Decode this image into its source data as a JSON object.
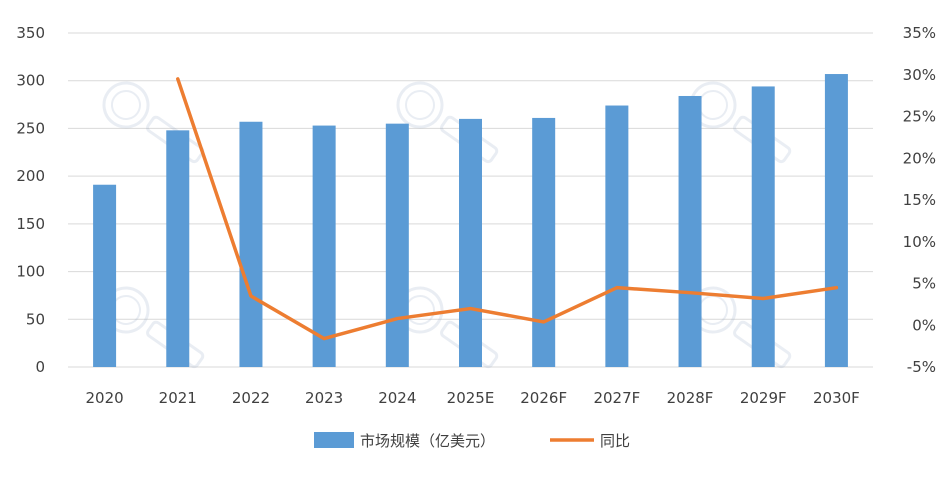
{
  "chart_data": {
    "type": "bar+line",
    "categories": [
      "2020",
      "2021",
      "2022",
      "2023",
      "2024",
      "2025E",
      "2026F",
      "2027F",
      "2028F",
      "2029F",
      "2030F"
    ],
    "series": [
      {
        "name": "市场规模（亿美元）",
        "type": "bar",
        "axis": "left",
        "values": [
          191,
          248,
          257,
          253,
          255,
          260,
          261,
          274,
          284,
          294,
          307
        ]
      },
      {
        "name": "同比",
        "type": "line",
        "axis": "right",
        "values": [
          null,
          29.5,
          3.5,
          -1.6,
          0.8,
          2.0,
          0.4,
          4.5,
          3.9,
          3.2,
          4.5
        ]
      }
    ],
    "left_axis": {
      "min": 0,
      "max": 350,
      "step": 50,
      "tick_labels": [
        "0",
        "50",
        "100",
        "150",
        "200",
        "250",
        "300",
        "350"
      ]
    },
    "right_axis": {
      "min": -5,
      "max": 35,
      "step": 5,
      "tick_labels": [
        "-5%",
        "0%",
        "5%",
        "10%",
        "15%",
        "20%",
        "25%",
        "30%",
        "35%"
      ]
    },
    "grid": true,
    "legend_position": "bottom",
    "colors": {
      "bar": "#5b9bd5",
      "line": "#ed7d31",
      "grid": "#d9d9d9",
      "text": "#404040"
    }
  }
}
